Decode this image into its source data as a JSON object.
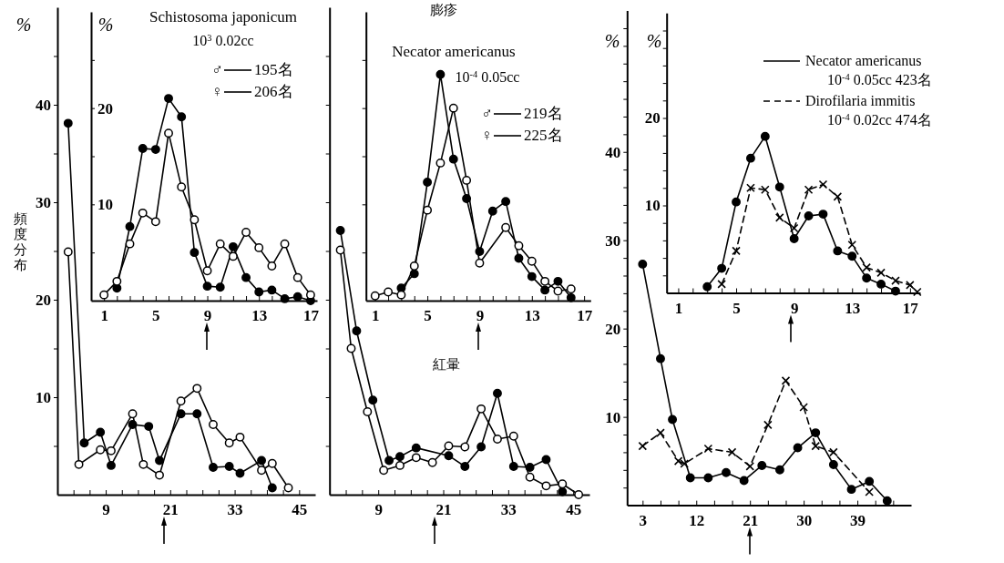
{
  "chart_data": [
    {
      "type": "line",
      "ylabel": "%",
      "annotations": [
        "頻度分布"
      ],
      "xlim": [
        0,
        48
      ],
      "ylim": [
        0,
        50
      ],
      "xticks": [
        {
          "value": 3,
          "label": null
        },
        {
          "value": 6,
          "label": null
        },
        9,
        {
          "value": 12,
          "label": null
        },
        {
          "value": 15,
          "label": null
        },
        {
          "value": 18,
          "label": null
        },
        21,
        {
          "value": 24,
          "label": null
        },
        {
          "value": 27,
          "label": null
        },
        {
          "value": 30,
          "label": null
        },
        33,
        {
          "value": 36,
          "label": null
        },
        {
          "value": 39,
          "label": null
        },
        {
          "value": 42,
          "label": null
        },
        45
      ],
      "yticks": [
        {
          "value": 5,
          "label": null
        },
        10,
        {
          "value": 15,
          "label": null
        },
        20,
        {
          "value": 25,
          "label": null
        },
        30,
        {
          "value": 35,
          "label": null
        },
        40,
        {
          "value": 45,
          "label": null
        }
      ],
      "marker": "circle",
      "series": [
        {
          "color": "#000000",
          "x": [
            2,
            5,
            8,
            10,
            14,
            17,
            19,
            23,
            26,
            29,
            32,
            34,
            38,
            40
          ],
          "values": [
            38.1,
            5.3,
            6.4,
            3.0,
            7.2,
            7.0,
            3.5,
            8.3,
            8.3,
            2.8,
            2.9,
            2.2,
            3.5,
            0.7
          ]
        },
        {
          "color": "#000000",
          "x": [
            2,
            4,
            8,
            10,
            14,
            16,
            19,
            23,
            26,
            29,
            32,
            34,
            38,
            40,
            43
          ],
          "values": [
            24.9,
            3.1,
            4.6,
            4.5,
            8.3,
            3.1,
            2.0,
            9.6,
            10.9,
            7.2,
            5.3,
            5.9,
            2.5,
            3.2,
            0.7
          ]
        }
      ]
    },
    {
      "type": "line",
      "title": "Schistosoma japonicum",
      "subtitle": "10$^{3}$ 0.02cc",
      "ylabel": "%",
      "xlim": [
        0,
        17.5
      ],
      "ylim": [
        0,
        30
      ],
      "xticks": [
        1,
        {
          "value": 2,
          "label": null
        },
        {
          "value": 3,
          "label": null
        },
        {
          "value": 4,
          "label": null
        },
        5,
        {
          "value": 6,
          "label": null
        },
        {
          "value": 7,
          "label": null
        },
        {
          "value": 8,
          "label": null
        },
        9,
        {
          "value": 10,
          "label": null
        },
        {
          "value": 11,
          "label": null
        },
        {
          "value": 12,
          "label": null
        },
        13,
        {
          "value": 14,
          "label": null
        },
        {
          "value": 15,
          "label": null
        },
        {
          "value": 16,
          "label": null
        },
        17
      ],
      "yticks": [
        {
          "value": 5,
          "label": null
        },
        10,
        {
          "value": 15,
          "label": null
        },
        20,
        {
          "value": 25,
          "label": null
        }
      ],
      "marker": "circle",
      "legend": "top right",
      "series": [
        {
          "name": "♂ 195名",
          "color": "#000000",
          "x": [
            2,
            3,
            4,
            5,
            6,
            7,
            8,
            9,
            10,
            11,
            12,
            13,
            14,
            15,
            16,
            17
          ],
          "values": [
            1.3,
            7.7,
            15.8,
            15.7,
            21.0,
            19.1,
            5.0,
            1.5,
            1.4,
            5.6,
            2.4,
            0.9,
            1.1,
            0.2,
            0.4,
            0
          ]
        },
        {
          "name": "♀ 206名",
          "color": "#000000",
          "x": [
            1,
            2,
            3,
            4,
            5,
            6,
            7,
            8,
            9,
            10,
            11,
            12,
            13,
            14,
            15,
            16,
            17
          ],
          "values": [
            0.6,
            2.0,
            5.9,
            9.1,
            8.2,
            17.4,
            11.8,
            8.4,
            3.1,
            5.9,
            4.6,
            7.1,
            5.5,
            3.6,
            5.9,
            2.4,
            0.6
          ]
        }
      ]
    },
    {
      "type": "line",
      "annotations": [
        "紅暈"
      ],
      "xlim": [
        0,
        48
      ],
      "ylim": [
        0,
        50
      ],
      "tick_labels": "x",
      "xticks": [
        {
          "value": 3,
          "label": null
        },
        {
          "value": 6,
          "label": null
        },
        9,
        {
          "value": 12,
          "label": null
        },
        {
          "value": 15,
          "label": null
        },
        {
          "value": 18,
          "label": null
        },
        21,
        {
          "value": 24,
          "label": null
        },
        {
          "value": 27,
          "label": null
        },
        {
          "value": 30,
          "label": null
        },
        33,
        {
          "value": 36,
          "label": null
        },
        {
          "value": 39,
          "label": null
        },
        {
          "value": 42,
          "label": null
        },
        45
      ],
      "yticks": [
        {
          "value": 5,
          "label": null
        },
        {
          "value": 10,
          "label": null
        },
        {
          "value": 15,
          "label": null
        },
        {
          "value": 20,
          "label": null
        },
        {
          "value": 25,
          "label": null
        },
        {
          "value": 30,
          "label": null
        },
        {
          "value": 35,
          "label": null
        },
        {
          "value": 40,
          "label": null
        },
        {
          "value": 45,
          "label": null
        }
      ],
      "marker": "circle",
      "series": [
        {
          "color": "#000000",
          "x": [
            2,
            5,
            8,
            11,
            13,
            16,
            22,
            25,
            28,
            31,
            34,
            37,
            40,
            43
          ],
          "values": [
            27.1,
            16.8,
            9.7,
            3.5,
            3.9,
            4.8,
            4.0,
            2.9,
            4.9,
            10.4,
            2.9,
            2.8,
            3.6,
            0.3
          ]
        },
        {
          "color": "#000000",
          "x": [
            2,
            4,
            7,
            10,
            13,
            16,
            19,
            22,
            25,
            28,
            31,
            34,
            37,
            40,
            43,
            46
          ],
          "values": [
            25.1,
            15.0,
            8.5,
            2.5,
            3.0,
            3.8,
            3.3,
            5.0,
            4.9,
            8.8,
            5.7,
            6.0,
            1.8,
            0.9,
            1.1,
            0
          ]
        }
      ]
    },
    {
      "type": "line",
      "title": "Necator americanus",
      "subtitle": "10$^{-4}$ 0.05cc",
      "annotations": [
        "膨疹"
      ],
      "xlim": [
        0.3,
        17.5
      ],
      "ylim": [
        0,
        30
      ],
      "tick_labels": "x",
      "xticks": [
        1,
        {
          "value": 2,
          "label": null
        },
        {
          "value": 3,
          "label": null
        },
        {
          "value": 4,
          "label": null
        },
        5,
        {
          "value": 6,
          "label": null
        },
        {
          "value": 7,
          "label": null
        },
        {
          "value": 8,
          "label": null
        },
        9,
        {
          "value": 10,
          "label": null
        },
        {
          "value": 11,
          "label": null
        },
        {
          "value": 12,
          "label": null
        },
        13,
        {
          "value": 14,
          "label": null
        },
        {
          "value": 15,
          "label": null
        },
        {
          "value": 16,
          "label": null
        },
        17
      ],
      "yticks": [
        {
          "value": 5,
          "label": null
        },
        {
          "value": 10,
          "label": null
        },
        {
          "value": 15,
          "label": null
        },
        {
          "value": 20,
          "label": null
        },
        {
          "value": 25,
          "label": null
        }
      ],
      "marker": "circle",
      "legend": "top right",
      "series": [
        {
          "name": "♂ 219名",
          "color": "#000000",
          "x": [
            3,
            4,
            5,
            6,
            7,
            8,
            9,
            10,
            11,
            12,
            13,
            14,
            15,
            16
          ],
          "values": [
            1.3,
            2.8,
            12.3,
            23.5,
            14.7,
            10.6,
            5.1,
            9.3,
            10.3,
            4.4,
            2.5,
            1.1,
            2.0,
            0.3
          ]
        },
        {
          "name": "♀ 225名",
          "color": "#000000",
          "x": [
            1,
            2,
            3,
            4,
            5,
            6,
            7,
            8,
            9,
            11,
            12,
            13,
            14,
            15,
            16
          ],
          "values": [
            0.5,
            0.9,
            0.6,
            3.6,
            9.4,
            14.3,
            20.0,
            12.5,
            3.9,
            7.6,
            5.7,
            4.1,
            2.0,
            1.0,
            1.2
          ]
        }
      ]
    },
    {
      "type": "line",
      "ylabel": "%",
      "xlim": [
        0.4,
        48
      ],
      "ylim": [
        0,
        56
      ],
      "xticks": [
        3,
        {
          "value": 6,
          "label": null
        },
        {
          "value": 9,
          "label": null
        },
        12,
        {
          "value": 15,
          "label": null
        },
        {
          "value": 18,
          "label": null
        },
        21,
        {
          "value": 24,
          "label": null
        },
        {
          "value": 27,
          "label": null
        },
        30,
        {
          "value": 33,
          "label": null
        },
        {
          "value": 36,
          "label": null
        },
        39,
        {
          "value": 42,
          "label": null
        },
        {
          "value": 45,
          "label": null
        }
      ],
      "yticks": [
        {
          "value": 2,
          "label": null
        },
        {
          "value": 4,
          "label": null
        },
        {
          "value": 6,
          "label": null
        },
        {
          "value": 8,
          "label": null
        },
        10,
        {
          "value": 12,
          "label": null
        },
        {
          "value": 14,
          "label": null
        },
        {
          "value": 16,
          "label": null
        },
        {
          "value": 18,
          "label": null
        },
        20,
        {
          "value": 22,
          "label": null
        },
        {
          "value": 24,
          "label": null
        },
        {
          "value": 26,
          "label": null
        },
        {
          "value": 28,
          "label": null
        },
        30,
        {
          "value": 32,
          "label": null
        },
        {
          "value": 34,
          "label": null
        },
        {
          "value": 36,
          "label": null
        },
        {
          "value": 38,
          "label": null
        },
        40,
        {
          "value": 42,
          "label": null
        },
        {
          "value": 44,
          "label": null
        },
        {
          "value": 46,
          "label": null
        },
        {
          "value": 48,
          "label": null
        },
        {
          "value": 50,
          "label": null
        },
        {
          "value": 52,
          "label": null
        },
        {
          "value": 54,
          "label": null
        }
      ],
      "series": [
        {
          "color": "#000000",
          "marker": "circle",
          "line_style": "solid",
          "x": [
            3,
            6,
            8,
            11,
            14,
            17,
            20,
            23,
            26,
            29,
            32,
            35,
            38,
            41,
            44
          ],
          "values": [
            27.3,
            16.6,
            9.7,
            3.1,
            3.1,
            3.7,
            2.8,
            4.5,
            4.0,
            6.5,
            8.2,
            4.6,
            1.8,
            2.7,
            0.5
          ]
        },
        {
          "color": "#000000",
          "marker": "cross",
          "line_style": "dashed",
          "x": [
            3,
            6,
            9,
            10,
            14,
            18,
            21,
            24,
            27,
            30,
            32,
            35,
            41
          ],
          "values": [
            6.7,
            8.2,
            5.0,
            4.7,
            6.4,
            6.0,
            4.4,
            9.1,
            14.1,
            11.1,
            6.7,
            6.0,
            1.5
          ]
        }
      ]
    },
    {
      "type": "line",
      "ylabel": "%",
      "xlim": [
        0.2,
        17.7
      ],
      "ylim": [
        0,
        32
      ],
      "legend": "top right",
      "xticks": [
        1,
        {
          "value": 2,
          "label": null
        },
        {
          "value": 3,
          "label": null
        },
        {
          "value": 4,
          "label": null
        },
        5,
        {
          "value": 6,
          "label": null
        },
        {
          "value": 7,
          "label": null
        },
        {
          "value": 8,
          "label": null
        },
        9,
        {
          "value": 10,
          "label": null
        },
        {
          "value": 11,
          "label": null
        },
        {
          "value": 12,
          "label": null
        },
        13,
        {
          "value": 14,
          "label": null
        },
        {
          "value": 15,
          "label": null
        },
        {
          "value": 16,
          "label": null
        },
        17
      ],
      "yticks": [
        {
          "value": 2,
          "label": null
        },
        {
          "value": 4,
          "label": null
        },
        {
          "value": 6,
          "label": null
        },
        {
          "value": 8,
          "label": null
        },
        10,
        {
          "value": 12,
          "label": null
        },
        {
          "value": 14,
          "label": null
        },
        {
          "value": 16,
          "label": null
        },
        {
          "value": 18,
          "label": null
        },
        20,
        {
          "value": 22,
          "label": null
        },
        {
          "value": 24,
          "label": null
        },
        {
          "value": 26,
          "label": null
        },
        {
          "value": 28,
          "label": null
        },
        {
          "value": 30,
          "label": null
        }
      ],
      "series": [
        {
          "name": "Necator americanus\n10$^{-4}$ 0.05cc 423名",
          "color": "#000000",
          "marker": "circle",
          "line_style": "solid",
          "x": [
            3,
            4,
            5,
            6,
            7,
            8,
            9,
            10,
            11,
            12,
            13,
            14,
            15,
            16
          ],
          "values": [
            0.7,
            2.8,
            10.4,
            15.4,
            17.9,
            12.1,
            6.2,
            8.8,
            9.0,
            4.8,
            4.2,
            1.7,
            1.0,
            0.2
          ]
        },
        {
          "name": "Dirofilaria immitis\n10$^{-4}$ 0.02cc 474名",
          "color": "#000000",
          "marker": "cross",
          "line_style": "dashed",
          "x": [
            4,
            5,
            6,
            7,
            8,
            9,
            10,
            11,
            12,
            13,
            14,
            15,
            16,
            17,
            17.5
          ],
          "values": [
            1.0,
            4.8,
            12.0,
            11.8,
            8.6,
            7.4,
            11.8,
            12.4,
            11.0,
            5.5,
            2.9,
            2.3,
            1.4,
            0.9,
            0.1
          ]
        }
      ]
    }
  ]
}
